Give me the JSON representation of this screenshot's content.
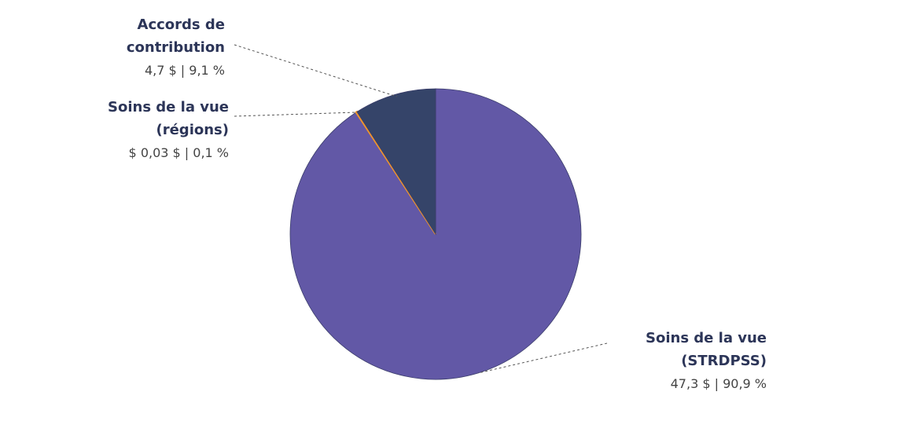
{
  "chart_data": {
    "type": "pie",
    "categories": [
      "Soins de la vue (STRDPSS)",
      "Soins de la vue (régions)",
      "Accords de contribution"
    ],
    "values": [
      90.9,
      0.1,
      9.1
    ],
    "value_labels": [
      "47,3 $ | 90,9 %",
      "$ 0,03 $ | 0,1 %",
      "4,7 $ | 9,1 %"
    ],
    "colors": [
      "#6258a6",
      "#f0962a",
      "#354469"
    ]
  }
}
